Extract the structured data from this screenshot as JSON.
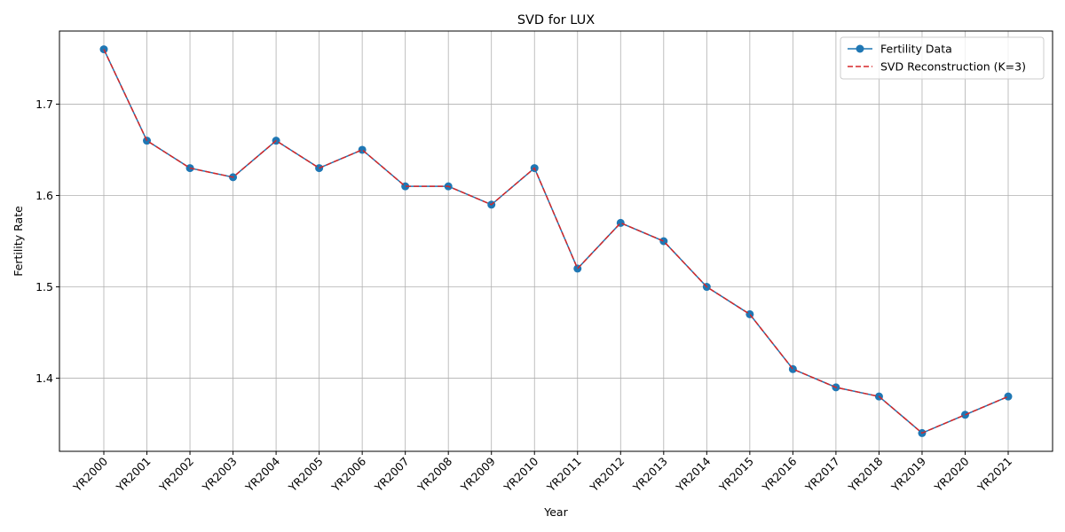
{
  "chart_data": {
    "type": "line",
    "title": "SVD for LUX",
    "xlabel": "Year",
    "ylabel": "Fertility Rate",
    "categories": [
      "YR2000",
      "YR2001",
      "YR2002",
      "YR2003",
      "YR2004",
      "YR2005",
      "YR2006",
      "YR2007",
      "YR2008",
      "YR2009",
      "YR2010",
      "YR2011",
      "YR2012",
      "YR2013",
      "YR2014",
      "YR2015",
      "YR2016",
      "YR2017",
      "YR2018",
      "YR2019",
      "YR2020",
      "YR2021"
    ],
    "series": [
      {
        "name": "Fertility Data",
        "color": "#1f77b4",
        "style": "solid-with-markers",
        "values": [
          1.76,
          1.66,
          1.63,
          1.62,
          1.66,
          1.63,
          1.65,
          1.61,
          1.61,
          1.59,
          1.63,
          1.52,
          1.57,
          1.55,
          1.5,
          1.47,
          1.41,
          1.39,
          1.38,
          1.34,
          1.36,
          1.38
        ]
      },
      {
        "name": "SVD Reconstruction (K=3)",
        "color": "#d62728",
        "style": "dashed",
        "values": [
          1.76,
          1.66,
          1.63,
          1.62,
          1.66,
          1.63,
          1.65,
          1.61,
          1.61,
          1.59,
          1.63,
          1.52,
          1.57,
          1.55,
          1.5,
          1.47,
          1.41,
          1.39,
          1.38,
          1.34,
          1.36,
          1.38
        ]
      }
    ],
    "ylim": [
      1.32,
      1.78
    ],
    "yticks": [
      "1.4",
      "1.5",
      "1.6",
      "1.7"
    ],
    "grid": true,
    "legend_position": "top-right"
  }
}
